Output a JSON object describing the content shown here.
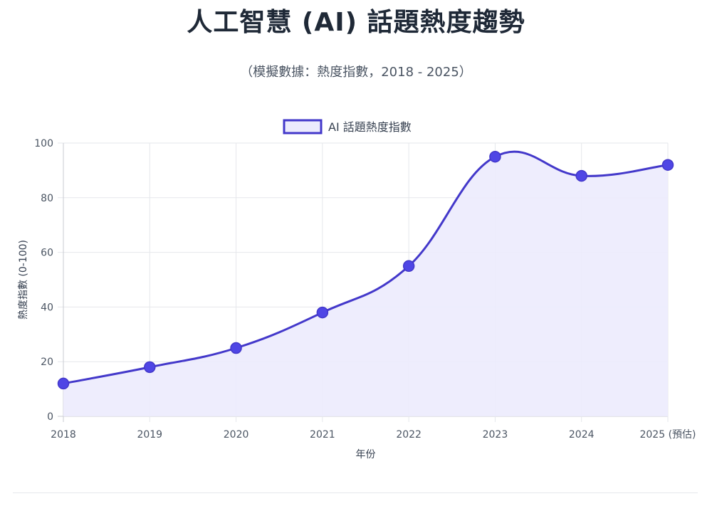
{
  "title": "人工智慧 (AI) 話題熱度趨勢",
  "subtitle": "（模擬數據：熱度指數，2018 - 2025）",
  "chart_data": {
    "type": "area",
    "categories": [
      "2018",
      "2019",
      "2020",
      "2021",
      "2022",
      "2023",
      "2024",
      "2025 (預估)"
    ],
    "series": [
      {
        "name": "AI 話題熱度指數",
        "values": [
          12,
          18,
          25,
          38,
          55,
          95,
          88,
          92
        ]
      }
    ],
    "ylim": [
      0,
      100
    ],
    "yticks": [
      "0",
      "20",
      "40",
      "60",
      "80",
      "100"
    ],
    "xlabel": "年份",
    "ylabel": "熱度指數 (0-100)",
    "grid": true,
    "legend": "top-center",
    "colors": {
      "line": "#4338ca",
      "point": "#4f46e5",
      "fill": "#ecebfd",
      "grid": "#e5e7eb",
      "axis": "#c9cbd1"
    }
  }
}
